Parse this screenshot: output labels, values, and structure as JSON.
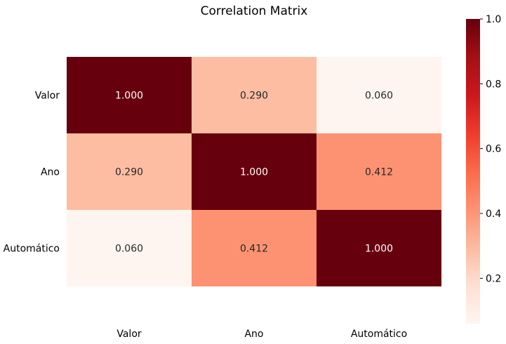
{
  "chart_data": {
    "type": "heatmap",
    "title": "Correlation Matrix",
    "x_categories": [
      "Valor",
      "Ano",
      "Automático"
    ],
    "y_categories": [
      "Valor",
      "Ano",
      "Automático"
    ],
    "values": [
      [
        1.0,
        0.29,
        0.06
      ],
      [
        0.29,
        1.0,
        0.412
      ],
      [
        0.06,
        0.412,
        1.0
      ]
    ],
    "cell_labels": [
      [
        "1.000",
        "0.290",
        "0.060"
      ],
      [
        "0.290",
        "1.000",
        "0.412"
      ],
      [
        "0.060",
        "0.412",
        "1.000"
      ]
    ],
    "colormap": "Reds",
    "colorbar": {
      "range": [
        0.06,
        1.0
      ],
      "ticks": [
        0.2,
        0.4,
        0.6,
        0.8,
        1.0
      ],
      "tick_labels": [
        "0.2",
        "0.4",
        "0.6",
        "0.8",
        "1.0"
      ]
    }
  }
}
